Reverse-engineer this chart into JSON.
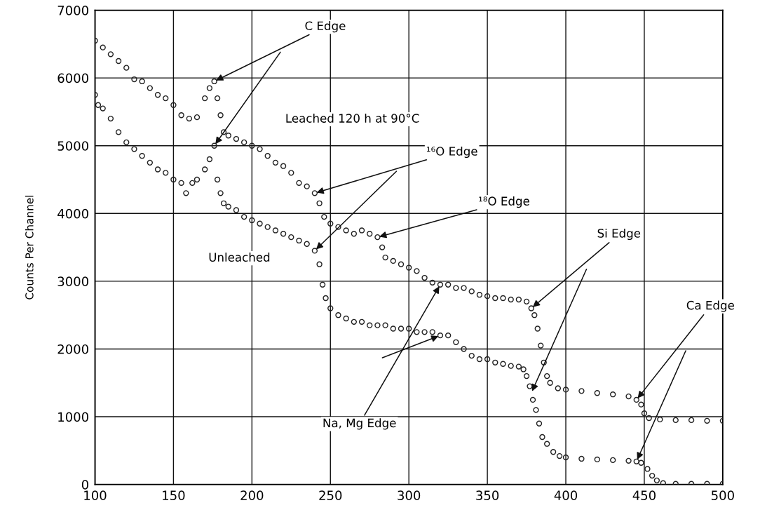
{
  "chart_data": {
    "type": "scatter",
    "ylabel": "Counts Per Channel",
    "xlim": [
      100,
      500
    ],
    "xticks": [
      100,
      150,
      200,
      250,
      300,
      350,
      400,
      450,
      500
    ],
    "ylim": [
      0,
      7000
    ],
    "yticks": [
      0,
      1000,
      2000,
      3000,
      4000,
      5000,
      6000,
      7000
    ],
    "grid": true,
    "marker": "circle",
    "series": [
      {
        "color": "#222222",
        "x": [
          100,
          105,
          110,
          115,
          120,
          125,
          130,
          135,
          140,
          145,
          150,
          155,
          160,
          165,
          170,
          173,
          176,
          178,
          180,
          182,
          185,
          190,
          195,
          200,
          205,
          210,
          215,
          220,
          225,
          230,
          235,
          240,
          243,
          246,
          250,
          255,
          260,
          265,
          270,
          275,
          280,
          283,
          285,
          290,
          295,
          300,
          305,
          310,
          315,
          320,
          325,
          330,
          335,
          340,
          345,
          350,
          355,
          360,
          365,
          370,
          375,
          378,
          380,
          382,
          384,
          386,
          388,
          390,
          395,
          400,
          410,
          420,
          430,
          440,
          445,
          448,
          450,
          453,
          460,
          470,
          480,
          490,
          500
        ],
        "values": [
          6550,
          6450,
          6350,
          6250,
          6150,
          5980,
          5950,
          5850,
          5750,
          5700,
          5600,
          5450,
          5400,
          5420,
          5700,
          5850,
          5950,
          5700,
          5450,
          5200,
          5150,
          5100,
          5050,
          5000,
          4950,
          4850,
          4750,
          4700,
          4600,
          4450,
          4400,
          4300,
          4150,
          3950,
          3850,
          3800,
          3750,
          3700,
          3750,
          3700,
          3650,
          3500,
          3350,
          3300,
          3250,
          3200,
          3150,
          3050,
          2980,
          2950,
          2950,
          2900,
          2900,
          2850,
          2800,
          2780,
          2750,
          2750,
          2730,
          2730,
          2700,
          2600,
          2500,
          2300,
          2050,
          1800,
          1600,
          1500,
          1420,
          1400,
          1380,
          1350,
          1330,
          1300,
          1250,
          1180,
          1050,
          980,
          960,
          950,
          950,
          940,
          940
        ]
      },
      {
        "color": "#222222",
        "x": [
          100,
          102,
          105,
          110,
          115,
          120,
          125,
          130,
          135,
          140,
          145,
          150,
          155,
          158,
          162,
          165,
          170,
          173,
          176,
          178,
          180,
          182,
          185,
          190,
          195,
          200,
          205,
          210,
          215,
          220,
          225,
          230,
          235,
          240,
          243,
          245,
          247,
          250,
          255,
          260,
          265,
          270,
          275,
          280,
          285,
          290,
          295,
          300,
          305,
          310,
          315,
          320,
          325,
          330,
          335,
          340,
          345,
          350,
          355,
          360,
          365,
          370,
          373,
          375,
          377,
          379,
          381,
          383,
          385,
          388,
          392,
          396,
          400,
          410,
          420,
          430,
          440,
          445,
          448,
          452,
          455,
          458,
          462,
          470,
          480,
          490,
          500
        ],
        "values": [
          5750,
          5600,
          5550,
          5400,
          5200,
          5050,
          4950,
          4850,
          4750,
          4650,
          4600,
          4500,
          4450,
          4300,
          4450,
          4500,
          4650,
          4800,
          5000,
          4500,
          4300,
          4150,
          4100,
          4050,
          3950,
          3900,
          3850,
          3800,
          3750,
          3700,
          3650,
          3600,
          3550,
          3450,
          3250,
          2950,
          2750,
          2600,
          2500,
          2450,
          2400,
          2400,
          2350,
          2350,
          2350,
          2300,
          2300,
          2300,
          2250,
          2250,
          2250,
          2200,
          2200,
          2100,
          2000,
          1900,
          1850,
          1850,
          1800,
          1780,
          1750,
          1740,
          1700,
          1600,
          1450,
          1250,
          1100,
          900,
          700,
          600,
          480,
          420,
          400,
          380,
          370,
          360,
          350,
          340,
          320,
          230,
          130,
          60,
          20,
          10,
          10,
          10,
          10
        ]
      }
    ],
    "annotations": [
      {
        "text": "C Edge",
        "x": 176,
        "y": 5950
      },
      {
        "text": "¹⁶O Edge",
        "x": 240,
        "y": 4300
      },
      {
        "text": "¹⁸O Edge",
        "x": 280,
        "y": 3650
      },
      {
        "text": "Si Edge",
        "x": 378,
        "y": 2600
      },
      {
        "text": "Ca Edge",
        "x": 445,
        "y": 1250
      },
      {
        "text": "Na, Mg Edge",
        "x": 320,
        "y": 2950
      },
      "Leached 120 h at 90°C",
      "Unleached"
    ]
  }
}
